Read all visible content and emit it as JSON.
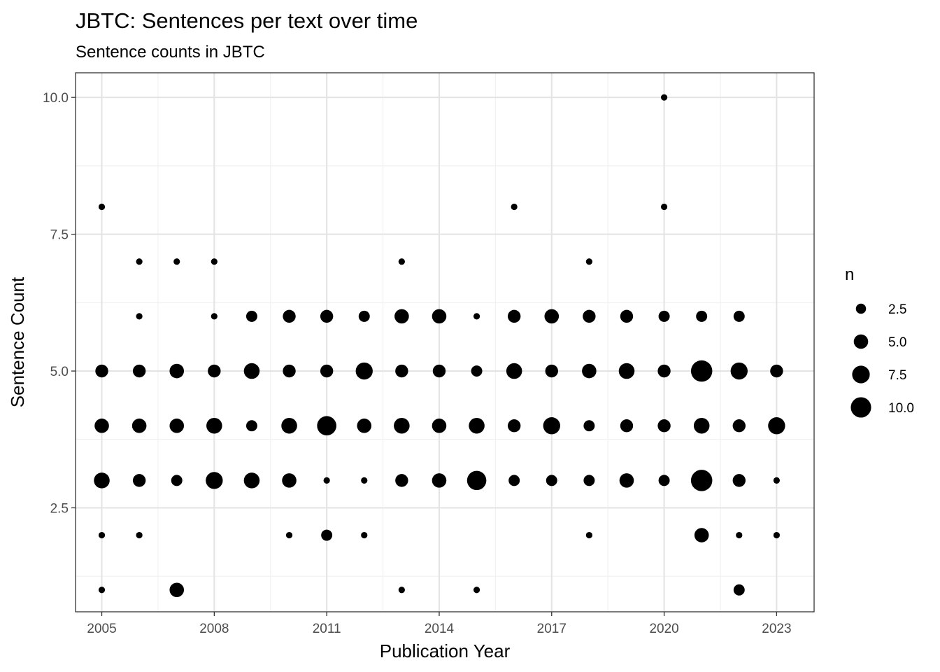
{
  "chart_data": {
    "type": "scatter",
    "title": "JBTC: Sentences per text over time",
    "subtitle": "Sentence counts in JBTC",
    "xlabel": "Publication Year",
    "ylabel": "Sentence Count",
    "xlim": [
      2004.3,
      2024.0
    ],
    "ylim": [
      0.6,
      10.45
    ],
    "x_ticks": [
      2005,
      2008,
      2011,
      2014,
      2017,
      2020,
      2023
    ],
    "y_ticks": [
      2.5,
      5.0,
      7.5,
      10.0
    ],
    "x_tick_labels": [
      "2005",
      "2008",
      "2011",
      "2014",
      "2017",
      "2020",
      "2023"
    ],
    "y_tick_labels": [
      "2.5",
      "5.0",
      "7.5",
      "10.0"
    ],
    "grid": true,
    "size_legend": {
      "title": "n",
      "values": [
        2.5,
        5.0,
        7.5,
        10.0
      ],
      "labels": [
        "2.5",
        "5.0",
        "7.5",
        "10.0"
      ],
      "placement": "right"
    },
    "points": [
      {
        "x": 2005,
        "y": 1,
        "n": 1
      },
      {
        "x": 2005,
        "y": 2,
        "n": 1
      },
      {
        "x": 2005,
        "y": 3,
        "n": 6
      },
      {
        "x": 2005,
        "y": 4,
        "n": 5
      },
      {
        "x": 2005,
        "y": 5,
        "n": 4
      },
      {
        "x": 2005,
        "y": 8,
        "n": 1
      },
      {
        "x": 2006,
        "y": 2,
        "n": 1
      },
      {
        "x": 2006,
        "y": 3,
        "n": 4
      },
      {
        "x": 2006,
        "y": 4,
        "n": 5
      },
      {
        "x": 2006,
        "y": 5,
        "n": 4
      },
      {
        "x": 2006,
        "y": 6,
        "n": 1
      },
      {
        "x": 2006,
        "y": 7,
        "n": 1
      },
      {
        "x": 2007,
        "y": 1,
        "n": 5
      },
      {
        "x": 2007,
        "y": 3,
        "n": 3
      },
      {
        "x": 2007,
        "y": 4,
        "n": 5
      },
      {
        "x": 2007,
        "y": 5,
        "n": 5
      },
      {
        "x": 2007,
        "y": 7,
        "n": 1
      },
      {
        "x": 2008,
        "y": 3,
        "n": 7
      },
      {
        "x": 2008,
        "y": 4,
        "n": 6
      },
      {
        "x": 2008,
        "y": 5,
        "n": 4
      },
      {
        "x": 2008,
        "y": 6,
        "n": 1
      },
      {
        "x": 2008,
        "y": 7,
        "n": 1
      },
      {
        "x": 2009,
        "y": 3,
        "n": 6
      },
      {
        "x": 2009,
        "y": 4,
        "n": 3
      },
      {
        "x": 2009,
        "y": 5,
        "n": 6
      },
      {
        "x": 2009,
        "y": 6,
        "n": 3
      },
      {
        "x": 2010,
        "y": 2,
        "n": 1
      },
      {
        "x": 2010,
        "y": 3,
        "n": 5
      },
      {
        "x": 2010,
        "y": 4,
        "n": 6
      },
      {
        "x": 2010,
        "y": 5,
        "n": 4
      },
      {
        "x": 2010,
        "y": 6,
        "n": 4
      },
      {
        "x": 2011,
        "y": 2,
        "n": 3
      },
      {
        "x": 2011,
        "y": 3,
        "n": 1
      },
      {
        "x": 2011,
        "y": 4,
        "n": 9
      },
      {
        "x": 2011,
        "y": 5,
        "n": 4
      },
      {
        "x": 2011,
        "y": 6,
        "n": 4
      },
      {
        "x": 2012,
        "y": 2,
        "n": 1
      },
      {
        "x": 2012,
        "y": 3,
        "n": 1
      },
      {
        "x": 2012,
        "y": 4,
        "n": 5
      },
      {
        "x": 2012,
        "y": 5,
        "n": 7
      },
      {
        "x": 2012,
        "y": 6,
        "n": 3
      },
      {
        "x": 2013,
        "y": 1,
        "n": 1
      },
      {
        "x": 2013,
        "y": 3,
        "n": 4
      },
      {
        "x": 2013,
        "y": 4,
        "n": 6
      },
      {
        "x": 2013,
        "y": 5,
        "n": 4
      },
      {
        "x": 2013,
        "y": 6,
        "n": 5
      },
      {
        "x": 2013,
        "y": 7,
        "n": 1
      },
      {
        "x": 2014,
        "y": 3,
        "n": 5
      },
      {
        "x": 2014,
        "y": 4,
        "n": 5
      },
      {
        "x": 2014,
        "y": 5,
        "n": 4
      },
      {
        "x": 2014,
        "y": 6,
        "n": 5
      },
      {
        "x": 2015,
        "y": 1,
        "n": 1
      },
      {
        "x": 2015,
        "y": 3,
        "n": 9
      },
      {
        "x": 2015,
        "y": 4,
        "n": 6
      },
      {
        "x": 2015,
        "y": 5,
        "n": 3
      },
      {
        "x": 2015,
        "y": 6,
        "n": 1
      },
      {
        "x": 2016,
        "y": 3,
        "n": 3
      },
      {
        "x": 2016,
        "y": 4,
        "n": 4
      },
      {
        "x": 2016,
        "y": 5,
        "n": 6
      },
      {
        "x": 2016,
        "y": 6,
        "n": 4
      },
      {
        "x": 2016,
        "y": 8,
        "n": 1
      },
      {
        "x": 2017,
        "y": 3,
        "n": 3
      },
      {
        "x": 2017,
        "y": 4,
        "n": 7
      },
      {
        "x": 2017,
        "y": 5,
        "n": 4
      },
      {
        "x": 2017,
        "y": 6,
        "n": 5
      },
      {
        "x": 2018,
        "y": 2,
        "n": 1
      },
      {
        "x": 2018,
        "y": 3,
        "n": 3
      },
      {
        "x": 2018,
        "y": 4,
        "n": 3
      },
      {
        "x": 2018,
        "y": 5,
        "n": 5
      },
      {
        "x": 2018,
        "y": 6,
        "n": 4
      },
      {
        "x": 2018,
        "y": 7,
        "n": 1
      },
      {
        "x": 2019,
        "y": 3,
        "n": 5
      },
      {
        "x": 2019,
        "y": 4,
        "n": 4
      },
      {
        "x": 2019,
        "y": 5,
        "n": 6
      },
      {
        "x": 2019,
        "y": 6,
        "n": 4
      },
      {
        "x": 2020,
        "y": 3,
        "n": 3
      },
      {
        "x": 2020,
        "y": 4,
        "n": 4
      },
      {
        "x": 2020,
        "y": 5,
        "n": 4
      },
      {
        "x": 2020,
        "y": 6,
        "n": 3
      },
      {
        "x": 2020,
        "y": 8,
        "n": 1
      },
      {
        "x": 2020,
        "y": 10,
        "n": 1
      },
      {
        "x": 2021,
        "y": 2,
        "n": 5
      },
      {
        "x": 2021,
        "y": 3,
        "n": 11
      },
      {
        "x": 2021,
        "y": 4,
        "n": 6
      },
      {
        "x": 2021,
        "y": 5,
        "n": 11
      },
      {
        "x": 2021,
        "y": 6,
        "n": 3
      },
      {
        "x": 2022,
        "y": 1,
        "n": 3
      },
      {
        "x": 2022,
        "y": 2,
        "n": 1
      },
      {
        "x": 2022,
        "y": 3,
        "n": 4
      },
      {
        "x": 2022,
        "y": 4,
        "n": 4
      },
      {
        "x": 2022,
        "y": 5,
        "n": 7
      },
      {
        "x": 2022,
        "y": 6,
        "n": 3
      },
      {
        "x": 2023,
        "y": 2,
        "n": 1
      },
      {
        "x": 2023,
        "y": 3,
        "n": 1
      },
      {
        "x": 2023,
        "y": 4,
        "n": 7
      },
      {
        "x": 2023,
        "y": 5,
        "n": 4
      }
    ]
  },
  "colors": {
    "point": "#000000",
    "panel_border": "#333333",
    "grid_major": "#e3e3e3",
    "grid_minor": "#f1f1f1",
    "tick_label": "#4d4d4d"
  }
}
